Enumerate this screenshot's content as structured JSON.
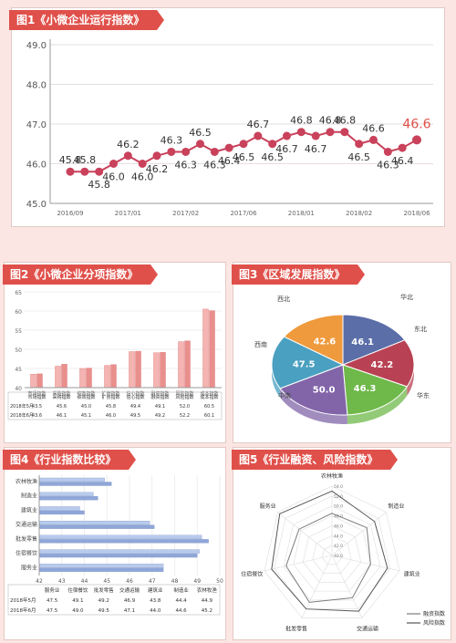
{
  "titles": {
    "fig1": "图1《小微企业运行指数》",
    "fig2": "图2《小微企业分项指数》",
    "fig3": "图3《区域发展指数》",
    "fig4": "图4《行业指数比较》",
    "fig5": "图5《行业融资、风险指数》"
  },
  "colors": {
    "accent": "#e0504a",
    "line": "#c9415a",
    "bar": "#f2aaa8",
    "bar2": "#a9bde6"
  },
  "chart_data": [
    {
      "id": "fig1",
      "type": "line",
      "title": "图1《小微企业运行指数》",
      "ylim": [
        45.0,
        49.0
      ],
      "yticks": [
        "45.0",
        "46.0",
        "47.0",
        "48.0",
        "49.0"
      ],
      "xticks": [
        "2016/09",
        "2017/01",
        "2017/02",
        "2017/06",
        "2018/01",
        "2018/02",
        "2018/06"
      ],
      "values": [
        45.8,
        45.8,
        45.8,
        46.0,
        46.2,
        46.0,
        46.2,
        46.3,
        46.3,
        46.5,
        46.3,
        46.4,
        46.5,
        46.7,
        46.5,
        46.7,
        46.8,
        46.7,
        46.8,
        46.8,
        46.5,
        46.6,
        46.3,
        46.4,
        46.6
      ],
      "value_labels": [
        "45.8",
        "45.8",
        "45.8",
        "46.0",
        "46.2",
        "46.0",
        "46.2",
        "46.3",
        "46.3",
        "46.5",
        "46.3",
        "46.4",
        "46.5",
        "46.7",
        "46.5",
        "46.7",
        "46.8",
        "46.7",
        "46.8",
        "46.8",
        "46.5",
        "46.6",
        "46.3",
        "46.4",
        "46.6"
      ],
      "highlight_last": true
    },
    {
      "id": "fig2",
      "type": "bar",
      "title": "图2《小微企业分项指数》",
      "ylim": [
        40,
        65
      ],
      "yticks": [
        "40",
        "45",
        "50",
        "55",
        "60",
        "65"
      ],
      "categories": [
        "市场指数",
        "采购指数",
        "绩效指数",
        "扩张指数",
        "信心指数",
        "融资指数",
        "风险指数",
        "成本指数"
      ],
      "series": [
        {
          "name": "2018年5月",
          "values": [
            43.5,
            45.6,
            45.0,
            45.8,
            49.4,
            49.1,
            52.0,
            60.5
          ]
        },
        {
          "name": "2018年6月",
          "values": [
            43.6,
            46.1,
            45.1,
            46.0,
            49.5,
            49.2,
            52.2,
            60.1
          ]
        }
      ],
      "table_rows": [
        [
          "2018年5月",
          "43.5",
          "45.6",
          "45.0",
          "45.8",
          "49.4",
          "49.1",
          "52.0",
          "60.5"
        ],
        [
          "2018年6月",
          "43.6",
          "46.1",
          "45.1",
          "46.0",
          "49.5",
          "49.2",
          "52.2",
          "60.1"
        ]
      ]
    },
    {
      "id": "fig3",
      "type": "pie",
      "title": "图3《区域发展指数》",
      "slices": [
        {
          "name": "华北",
          "value": 46.1,
          "label": "46.1",
          "color": "#5b6ea8"
        },
        {
          "name": "东北",
          "value": 42.2,
          "label": "42.2",
          "color": "#b84253"
        },
        {
          "name": "华东",
          "value": 46.3,
          "label": "46.3",
          "color": "#6fb84a"
        },
        {
          "name": "中南",
          "value": 50.0,
          "label": "50.0",
          "color": "#8265a8"
        },
        {
          "name": "西南",
          "value": 47.5,
          "label": "47.5",
          "color": "#4aa0c0"
        },
        {
          "name": "西北",
          "value": 42.6,
          "label": "42.6",
          "color": "#ef9a3c"
        }
      ]
    },
    {
      "id": "fig4",
      "type": "bar",
      "title": "图4《行业指数比较》",
      "xlim": [
        42,
        50
      ],
      "xticks": [
        "42",
        "43",
        "44",
        "45",
        "46",
        "47",
        "48",
        "49",
        "50"
      ],
      "categories": [
        "农林牧渔",
        "制造业",
        "建筑业",
        "交通运输",
        "批发零售",
        "住宿餐饮",
        "服务业"
      ],
      "series": [
        {
          "name": "2018年5月",
          "values": [
            44.9,
            44.4,
            43.8,
            46.9,
            49.2,
            49.1,
            47.5
          ]
        },
        {
          "name": "2018年6月",
          "values": [
            45.2,
            44.6,
            44.0,
            47.1,
            49.5,
            49.0,
            47.5
          ]
        }
      ],
      "table_header": [
        "服务业",
        "住宿餐饮",
        "批发零售",
        "交通运输",
        "建筑业",
        "制造业",
        "农林牧渔"
      ],
      "table_rows": [
        [
          "2018年5月",
          "47.5",
          "49.1",
          "49.2",
          "46.9",
          "43.8",
          "44.4",
          "44.9"
        ],
        [
          "2018年6月",
          "47.5",
          "49.0",
          "49.5",
          "47.1",
          "44.0",
          "44.6",
          "45.2"
        ]
      ]
    },
    {
      "id": "fig5",
      "type": "radar",
      "title": "图5《行业融资、风险指数》",
      "rlim": [
        40,
        54
      ],
      "rticks": [
        "40.0",
        "42.0",
        "44.0",
        "46.0",
        "48.0",
        "50.0",
        "52.0",
        "54.0"
      ],
      "axes": [
        "农林牧渔",
        "制造业",
        "建筑业",
        "交通运输",
        "批发零售",
        "住宿餐饮",
        "服务业"
      ],
      "series": [
        {
          "name": "融资指数",
          "values": [
            48.5,
            49.0,
            48.0,
            49.5,
            50.5,
            49.5,
            48.5
          ],
          "color": "#7b7b7b"
        },
        {
          "name": "风险指数",
          "values": [
            53.0,
            51.0,
            51.5,
            52.5,
            52.0,
            52.5,
            53.5
          ],
          "color": "#555555"
        }
      ]
    }
  ]
}
